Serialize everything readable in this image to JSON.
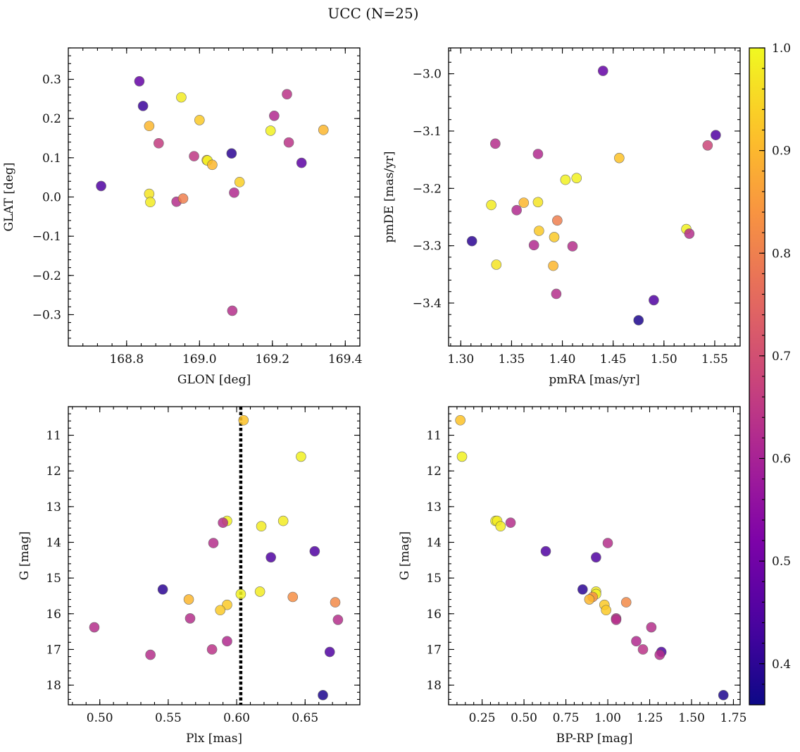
{
  "figure": {
    "title": "UCC (N=25)",
    "colorbar": {
      "colormap": "plasma",
      "range": [
        0.36,
        1.0
      ],
      "ticks": [
        0.4,
        0.5,
        0.6,
        0.7,
        0.8,
        0.9,
        1.0
      ],
      "tick_labels": [
        "0.4",
        "0.5",
        "0.6",
        "0.7",
        "0.8",
        "0.9",
        "1.0"
      ]
    }
  },
  "chart_data": [
    {
      "type": "scatter",
      "title": "",
      "xlabel": "GLON [deg]",
      "ylabel": "GLAT [deg]",
      "xlim": [
        168.64,
        169.44
      ],
      "ylim": [
        -0.38,
        0.38
      ],
      "invert_y": false,
      "xticks": [
        168.8,
        169.0,
        169.2,
        169.4
      ],
      "xtick_labels": [
        "168.8",
        "169.0",
        "169.2",
        "169.4"
      ],
      "yticks": [
        -0.3,
        -0.2,
        -0.1,
        0.0,
        0.1,
        0.2,
        0.3
      ],
      "ytick_labels": [
        "−0.3",
        "−0.2",
        "−0.1",
        "0.0",
        "0.1",
        "0.2",
        "0.3"
      ],
      "points": [
        {
          "x": 168.73,
          "y": 0.028,
          "c": 0.45
        },
        {
          "x": 168.835,
          "y": 0.295,
          "c": 0.48
        },
        {
          "x": 168.845,
          "y": 0.232,
          "c": 0.42
        },
        {
          "x": 168.862,
          "y": 0.181,
          "c": 0.9
        },
        {
          "x": 168.862,
          "y": 0.008,
          "c": 0.97
        },
        {
          "x": 168.865,
          "y": -0.013,
          "c": 0.98
        },
        {
          "x": 168.888,
          "y": 0.137,
          "c": 0.66
        },
        {
          "x": 168.937,
          "y": -0.012,
          "c": 0.63
        },
        {
          "x": 168.95,
          "y": 0.254,
          "c": 0.98
        },
        {
          "x": 168.955,
          "y": -0.004,
          "c": 0.8
        },
        {
          "x": 168.985,
          "y": 0.104,
          "c": 0.65
        },
        {
          "x": 169.0,
          "y": 0.196,
          "c": 0.93
        },
        {
          "x": 169.02,
          "y": 0.094,
          "c": 0.92
        },
        {
          "x": 169.022,
          "y": 0.093,
          "c": 0.99
        },
        {
          "x": 169.035,
          "y": 0.082,
          "c": 0.9
        },
        {
          "x": 169.088,
          "y": 0.111,
          "c": 0.4
        },
        {
          "x": 169.09,
          "y": -0.29,
          "c": 0.63
        },
        {
          "x": 169.095,
          "y": 0.011,
          "c": 0.62
        },
        {
          "x": 169.11,
          "y": 0.038,
          "c": 0.94
        },
        {
          "x": 169.195,
          "y": 0.169,
          "c": 0.99
        },
        {
          "x": 169.205,
          "y": 0.207,
          "c": 0.62
        },
        {
          "x": 169.24,
          "y": 0.262,
          "c": 0.64
        },
        {
          "x": 169.245,
          "y": 0.139,
          "c": 0.64
        },
        {
          "x": 169.28,
          "y": 0.087,
          "c": 0.47
        },
        {
          "x": 169.34,
          "y": 0.171,
          "c": 0.9
        }
      ]
    },
    {
      "type": "scatter",
      "title": "",
      "xlabel": "pmRA [mas/yr]",
      "ylabel": "pmDE [mas/yr]",
      "xlim": [
        1.288,
        1.575
      ],
      "ylim": [
        -3.475,
        -2.955
      ],
      "invert_y": false,
      "xticks": [
        1.3,
        1.35,
        1.4,
        1.45,
        1.5,
        1.55
      ],
      "xtick_labels": [
        "1.30",
        "1.35",
        "1.40",
        "1.45",
        "1.50",
        "1.55"
      ],
      "yticks": [
        -3.4,
        -3.3,
        -3.2,
        -3.1,
        -3.0
      ],
      "ytick_labels": [
        "−3.4",
        "−3.3",
        "−3.2",
        "−3.1",
        "−3.0"
      ],
      "points": [
        {
          "x": 1.311,
          "y": -3.292,
          "c": 0.4
        },
        {
          "x": 1.33,
          "y": -3.229,
          "c": 0.98
        },
        {
          "x": 1.334,
          "y": -3.122,
          "c": 0.63
        },
        {
          "x": 1.335,
          "y": -3.333,
          "c": 0.97
        },
        {
          "x": 1.355,
          "y": -3.238,
          "c": 0.62
        },
        {
          "x": 1.362,
          "y": -3.225,
          "c": 0.9
        },
        {
          "x": 1.372,
          "y": -3.299,
          "c": 0.62
        },
        {
          "x": 1.376,
          "y": -3.14,
          "c": 0.62
        },
        {
          "x": 1.376,
          "y": -3.224,
          "c": 0.97
        },
        {
          "x": 1.377,
          "y": -3.274,
          "c": 0.93
        },
        {
          "x": 1.391,
          "y": -3.335,
          "c": 0.9
        },
        {
          "x": 1.392,
          "y": -3.285,
          "c": 0.93
        },
        {
          "x": 1.394,
          "y": -3.384,
          "c": 0.63
        },
        {
          "x": 1.395,
          "y": -3.256,
          "c": 0.8
        },
        {
          "x": 1.403,
          "y": -3.185,
          "c": 0.99
        },
        {
          "x": 1.41,
          "y": -3.301,
          "c": 0.63
        },
        {
          "x": 1.414,
          "y": -3.182,
          "c": 0.99
        },
        {
          "x": 1.44,
          "y": -2.995,
          "c": 0.48
        },
        {
          "x": 1.456,
          "y": -3.147,
          "c": 0.92
        },
        {
          "x": 1.475,
          "y": -3.43,
          "c": 0.38
        },
        {
          "x": 1.49,
          "y": -3.395,
          "c": 0.45
        },
        {
          "x": 1.522,
          "y": -3.271,
          "c": 0.99
        },
        {
          "x": 1.525,
          "y": -3.279,
          "c": 0.63
        },
        {
          "x": 1.543,
          "y": -3.125,
          "c": 0.68
        },
        {
          "x": 1.551,
          "y": -3.107,
          "c": 0.45
        }
      ]
    },
    {
      "type": "scatter",
      "title": "",
      "xlabel": "Plx [mas]",
      "ylabel": "G [mag]",
      "xlim": [
        0.477,
        0.69
      ],
      "ylim": [
        10.2,
        18.55
      ],
      "invert_y": true,
      "xticks": [
        0.5,
        0.55,
        0.6,
        0.65
      ],
      "xtick_labels": [
        "0.50",
        "0.55",
        "0.60",
        "0.65"
      ],
      "yticks": [
        11,
        12,
        13,
        14,
        15,
        16,
        17,
        18
      ],
      "ytick_labels": [
        "11",
        "12",
        "13",
        "14",
        "15",
        "16",
        "17",
        "18"
      ],
      "vline": {
        "x": 0.603,
        "style": "dotted"
      },
      "points": [
        {
          "x": 0.605,
          "y": 10.58,
          "c": 0.92
        },
        {
          "x": 0.647,
          "y": 11.6,
          "c": 0.99
        },
        {
          "x": 0.593,
          "y": 13.4,
          "c": 0.99
        },
        {
          "x": 0.59,
          "y": 13.45,
          "c": 0.63
        },
        {
          "x": 0.618,
          "y": 13.55,
          "c": 0.98
        },
        {
          "x": 0.634,
          "y": 13.4,
          "c": 0.98
        },
        {
          "x": 0.583,
          "y": 14.02,
          "c": 0.63
        },
        {
          "x": 0.657,
          "y": 14.25,
          "c": 0.45
        },
        {
          "x": 0.625,
          "y": 14.42,
          "c": 0.45
        },
        {
          "x": 0.546,
          "y": 15.32,
          "c": 0.4
        },
        {
          "x": 0.603,
          "y": 15.45,
          "c": 0.99
        },
        {
          "x": 0.617,
          "y": 15.38,
          "c": 0.98
        },
        {
          "x": 0.641,
          "y": 15.53,
          "c": 0.83
        },
        {
          "x": 0.565,
          "y": 15.6,
          "c": 0.9
        },
        {
          "x": 0.593,
          "y": 15.75,
          "c": 0.93
        },
        {
          "x": 0.588,
          "y": 15.9,
          "c": 0.93
        },
        {
          "x": 0.672,
          "y": 15.68,
          "c": 0.82
        },
        {
          "x": 0.566,
          "y": 16.13,
          "c": 0.63
        },
        {
          "x": 0.674,
          "y": 16.17,
          "c": 0.63
        },
        {
          "x": 0.496,
          "y": 16.38,
          "c": 0.63
        },
        {
          "x": 0.593,
          "y": 16.77,
          "c": 0.62
        },
        {
          "x": 0.582,
          "y": 17.0,
          "c": 0.64
        },
        {
          "x": 0.668,
          "y": 17.07,
          "c": 0.45
        },
        {
          "x": 0.537,
          "y": 17.15,
          "c": 0.63
        },
        {
          "x": 0.663,
          "y": 18.28,
          "c": 0.38
        }
      ]
    },
    {
      "type": "scatter",
      "title": "",
      "xlabel": "BP-RP [mag]",
      "ylabel": "G [mag]",
      "xlim": [
        0.05,
        1.79
      ],
      "ylim": [
        10.2,
        18.55
      ],
      "invert_y": true,
      "xticks": [
        0.25,
        0.5,
        0.75,
        1.0,
        1.25,
        1.5,
        1.75
      ],
      "xtick_labels": [
        "0.25",
        "0.50",
        "0.75",
        "1.00",
        "1.25",
        "1.50",
        "1.75"
      ],
      "yticks": [
        11,
        12,
        13,
        14,
        15,
        16,
        17,
        18
      ],
      "ytick_labels": [
        "11",
        "12",
        "13",
        "14",
        "15",
        "16",
        "17",
        "18"
      ],
      "points": [
        {
          "x": 0.12,
          "y": 10.58,
          "c": 0.92
        },
        {
          "x": 0.13,
          "y": 11.6,
          "c": 0.99
        },
        {
          "x": 0.33,
          "y": 13.4,
          "c": 0.99
        },
        {
          "x": 0.34,
          "y": 13.4,
          "c": 0.98
        },
        {
          "x": 0.36,
          "y": 13.55,
          "c": 0.98
        },
        {
          "x": 0.42,
          "y": 13.45,
          "c": 0.63
        },
        {
          "x": 0.63,
          "y": 14.25,
          "c": 0.45
        },
        {
          "x": 1.0,
          "y": 14.02,
          "c": 0.63
        },
        {
          "x": 0.93,
          "y": 14.42,
          "c": 0.45
        },
        {
          "x": 0.85,
          "y": 15.32,
          "c": 0.4
        },
        {
          "x": 0.93,
          "y": 15.38,
          "c": 0.98
        },
        {
          "x": 0.93,
          "y": 15.45,
          "c": 0.99
        },
        {
          "x": 0.91,
          "y": 15.53,
          "c": 0.83
        },
        {
          "x": 0.89,
          "y": 15.6,
          "c": 0.9
        },
        {
          "x": 0.98,
          "y": 15.75,
          "c": 0.93
        },
        {
          "x": 0.99,
          "y": 15.9,
          "c": 0.93
        },
        {
          "x": 1.11,
          "y": 15.68,
          "c": 0.82
        },
        {
          "x": 1.05,
          "y": 16.13,
          "c": 0.63
        },
        {
          "x": 1.05,
          "y": 16.17,
          "c": 0.63
        },
        {
          "x": 1.26,
          "y": 16.38,
          "c": 0.63
        },
        {
          "x": 1.17,
          "y": 16.77,
          "c": 0.62
        },
        {
          "x": 1.21,
          "y": 17.0,
          "c": 0.64
        },
        {
          "x": 1.32,
          "y": 17.07,
          "c": 0.45
        },
        {
          "x": 1.31,
          "y": 17.15,
          "c": 0.63
        },
        {
          "x": 1.69,
          "y": 18.28,
          "c": 0.38
        }
      ]
    }
  ]
}
